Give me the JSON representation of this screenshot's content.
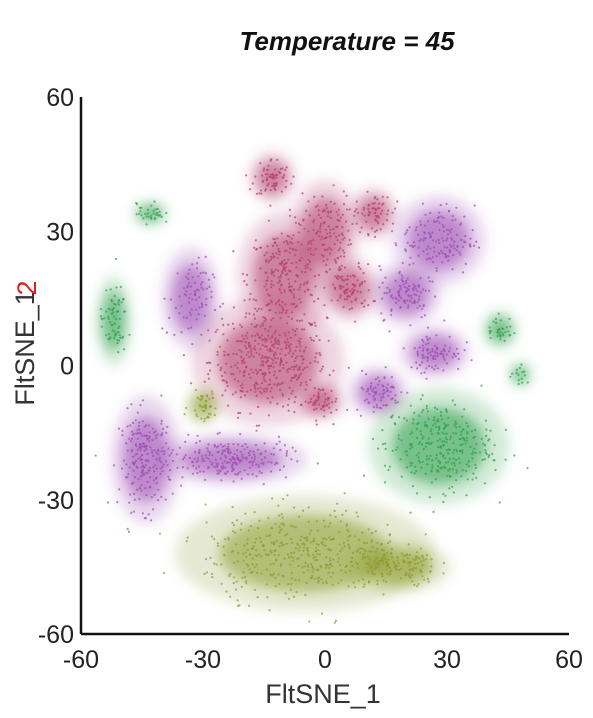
{
  "chart_data": {
    "type": "scatter",
    "title": "Temperature = 45",
    "xlabel": "FltSNE_1",
    "ylabel": "FltSNE_1",
    "ylabel_overlay": "2",
    "xlim": [
      -60,
      60
    ],
    "ylim": [
      -60,
      60
    ],
    "x_ticks": [
      -60,
      -30,
      0,
      30,
      60
    ],
    "y_ticks": [
      -60,
      -30,
      0,
      30,
      60
    ],
    "grid": false,
    "legend": "none",
    "series": [
      {
        "color": "#b33f6c",
        "clusters": [
          {
            "x": -14,
            "y": 1,
            "rx": 13,
            "ry": 10,
            "n": 420
          },
          {
            "x": -10,
            "y": 20,
            "rx": 8,
            "ry": 10,
            "n": 220
          },
          {
            "x": -13,
            "y": 42,
            "rx": 4,
            "ry": 4,
            "n": 70
          },
          {
            "x": 0,
            "y": 30,
            "rx": 6,
            "ry": 8,
            "n": 130
          },
          {
            "x": 6,
            "y": 17,
            "rx": 5,
            "ry": 5,
            "n": 90
          },
          {
            "x": 12,
            "y": 34,
            "rx": 4,
            "ry": 4,
            "n": 60
          },
          {
            "x": -1,
            "y": -8,
            "rx": 4,
            "ry": 3,
            "n": 50
          }
        ]
      },
      {
        "color": "#9b4bb0",
        "clusters": [
          {
            "x": -44,
            "y": -21,
            "rx": 6,
            "ry": 10,
            "n": 210
          },
          {
            "x": -23,
            "y": -21,
            "rx": 13,
            "ry": 4,
            "n": 220
          },
          {
            "x": -33,
            "y": 15,
            "rx": 5,
            "ry": 8,
            "n": 80
          },
          {
            "x": 28,
            "y": 28,
            "rx": 8,
            "ry": 7,
            "n": 150
          },
          {
            "x": 20,
            "y": 16,
            "rx": 6,
            "ry": 5,
            "n": 100
          },
          {
            "x": 27,
            "y": 3,
            "rx": 6,
            "ry": 4,
            "n": 90
          },
          {
            "x": 13,
            "y": -6,
            "rx": 5,
            "ry": 4,
            "n": 70
          }
        ]
      },
      {
        "color": "#2e9e4a",
        "clusters": [
          {
            "x": 28,
            "y": -18,
            "rx": 12,
            "ry": 9,
            "n": 300
          },
          {
            "x": -52,
            "y": 10,
            "rx": 3,
            "ry": 7,
            "n": 70
          },
          {
            "x": -43,
            "y": 34,
            "rx": 3,
            "ry": 2,
            "n": 35
          },
          {
            "x": 43,
            "y": 8,
            "rx": 3,
            "ry": 3,
            "n": 35
          },
          {
            "x": 48,
            "y": -2,
            "rx": 2,
            "ry": 2,
            "n": 15
          }
        ]
      },
      {
        "color": "#8a9a2c",
        "clusters": [
          {
            "x": -5,
            "y": -42,
            "rx": 22,
            "ry": 9,
            "n": 420
          },
          {
            "x": 18,
            "y": -45,
            "rx": 9,
            "ry": 4,
            "n": 120
          },
          {
            "x": -30,
            "y": -9,
            "rx": 3,
            "ry": 3,
            "n": 40
          }
        ]
      }
    ]
  }
}
